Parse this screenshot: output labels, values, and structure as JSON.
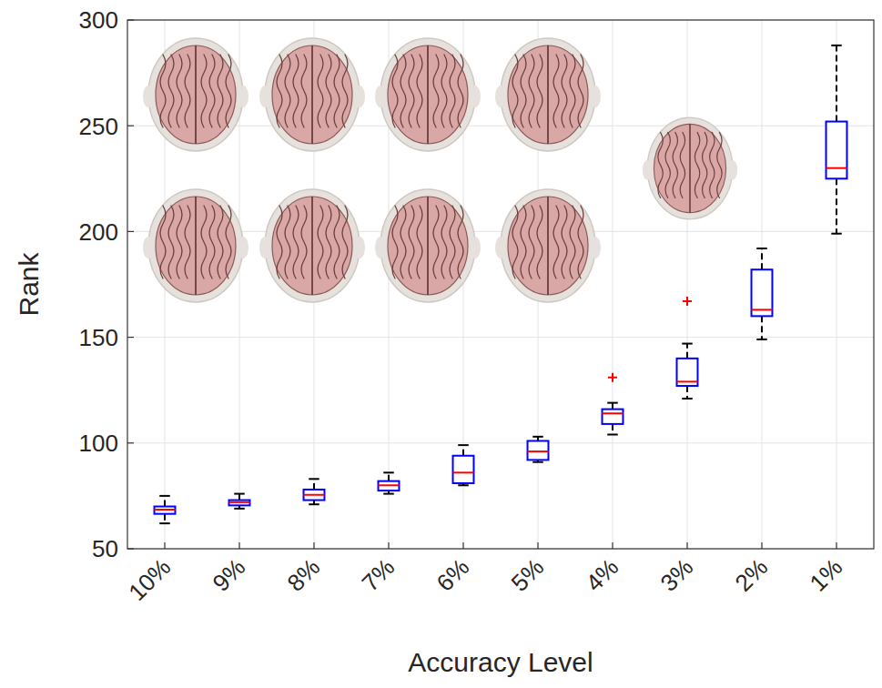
{
  "chart_data": {
    "type": "box",
    "x_label": "Accuracy Level",
    "y_label": "Rank",
    "categories": [
      "10%",
      "9%",
      "8%",
      "7%",
      "6%",
      "5%",
      "4%",
      "3%",
      "2%",
      "1%"
    ],
    "min": [
      62,
      69,
      71,
      76,
      80,
      91,
      104,
      121,
      149,
      199
    ],
    "q1": [
      66.5,
      70.5,
      73,
      77.5,
      81,
      92,
      109,
      127,
      160,
      225
    ],
    "median": [
      68.5,
      72,
      75.5,
      80,
      86,
      96,
      114,
      129,
      163,
      230
    ],
    "q3": [
      70,
      73,
      78,
      82,
      94,
      101,
      116,
      140,
      182,
      252
    ],
    "max": [
      75,
      76,
      83,
      86,
      99,
      103,
      119,
      147,
      192,
      288
    ],
    "outliers": [
      [],
      [],
      [],
      [],
      [],
      [],
      [
        131
      ],
      [
        167
      ],
      [],
      []
    ],
    "color": "#0000ff",
    "ylim": [
      50,
      300
    ],
    "yticks": [
      50,
      100,
      150,
      200,
      250,
      300
    ],
    "grid": true
  }
}
